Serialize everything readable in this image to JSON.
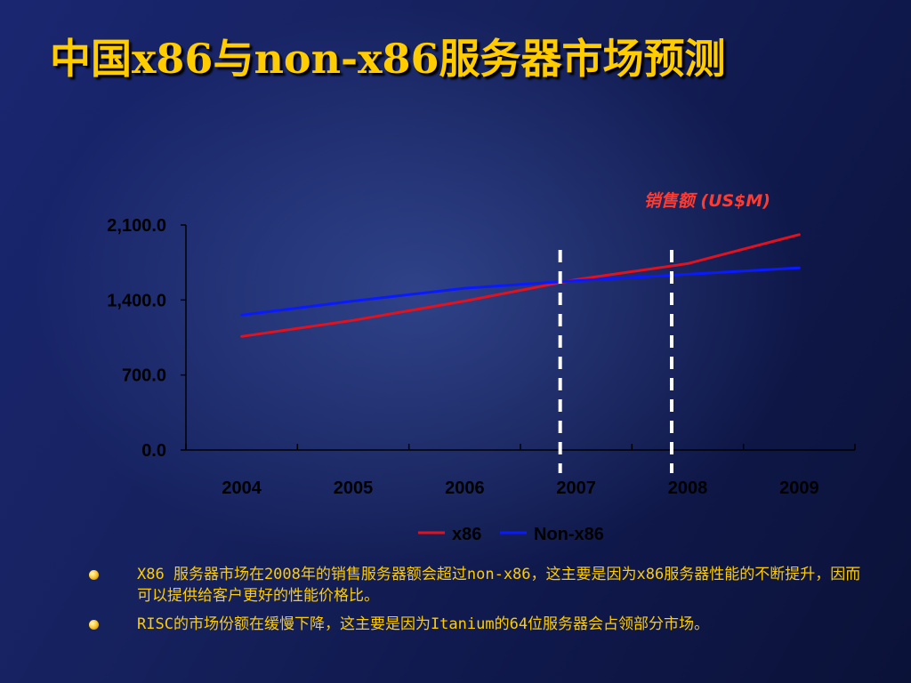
{
  "slide": {
    "title": "中国x86与non-x86服务器市场预测"
  },
  "chart_data": {
    "type": "line",
    "unit_label": "销售额 (US$M)",
    "categories": [
      "2004",
      "2005",
      "2006",
      "2007",
      "2008",
      "2009"
    ],
    "y_ticks": [
      "0.0",
      "700.0",
      "1,400.0",
      "2,100.0"
    ],
    "ylim": [
      0,
      2100
    ],
    "series": [
      {
        "name": "x86",
        "color": "#e0121e",
        "values": [
          1060,
          1210,
          1390,
          1590,
          1740,
          2010
        ]
      },
      {
        "name": "Non-x86",
        "color": "#0a1aff",
        "values": [
          1260,
          1390,
          1510,
          1580,
          1640,
          1700
        ]
      }
    ],
    "markers": [
      "2007",
      "2008"
    ],
    "legend_position": "bottom",
    "grid": false
  },
  "bullets": [
    "X86 服务器市场在2008年的销售服务器额会超过non-x86，这主要是因为x86服务器性能的不断提升，因而可以提供给客户更好的性能价格比。",
    "RISC的市场份额在缓慢下降，这主要是因为Itanium的64位服务器会占领部分市场。"
  ]
}
